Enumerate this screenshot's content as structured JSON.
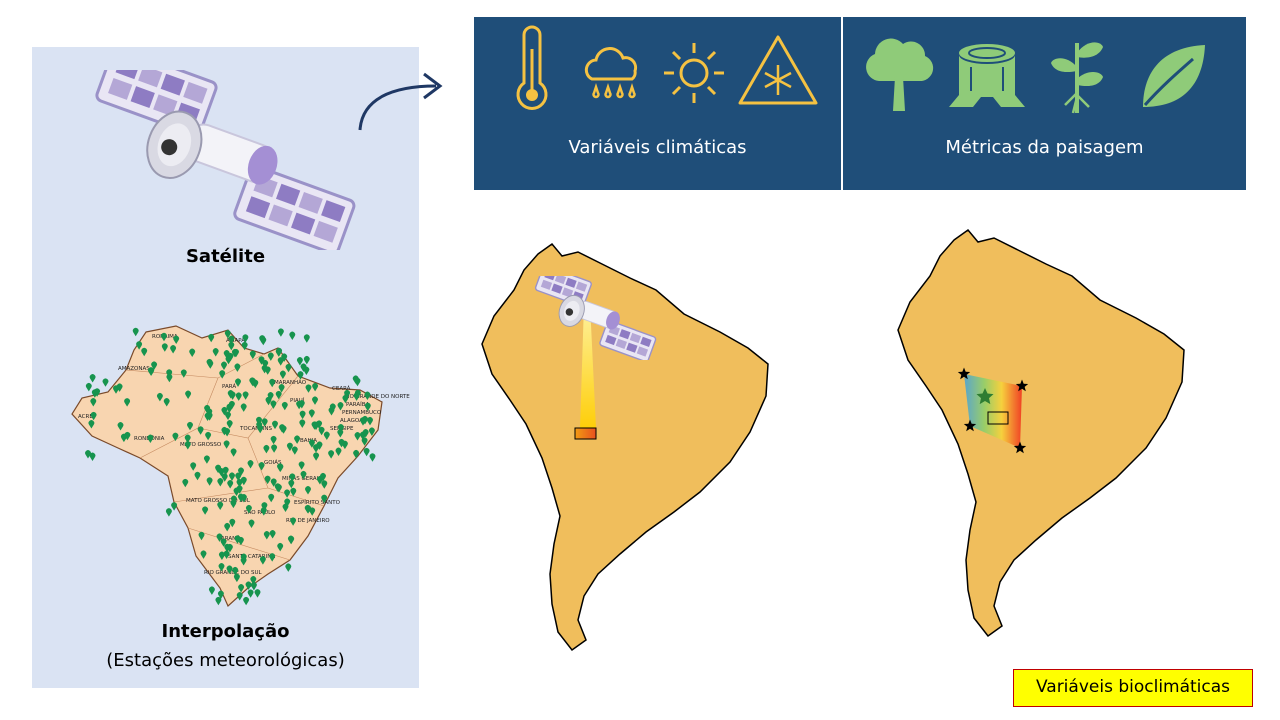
{
  "left_panel": {
    "satellite_label": "Satélite",
    "interpolation_label": "Interpolação",
    "interpolation_sub": "(Estações meteorológicas)",
    "map_labels": [
      "RORAIMA",
      "AMAPÁ",
      "AMAZONAS",
      "PARÁ",
      "MARANHÃO",
      "CEARÁ",
      "RIO GRANDE DO NORTE",
      "PARAÍBA",
      "PERNAMBUCO",
      "ALAGOAS",
      "SERGIPE",
      "PIAUÍ",
      "ACRE",
      "RONDÔNIA",
      "MATO GROSSO",
      "TOCANTINS",
      "BAHIA",
      "GOIÁS",
      "MINAS GERAIS",
      "ESPÍRITO SANTO",
      "MATO GROSSO DO SUL",
      "SÃO PAULO",
      "RIO DE JANEIRO",
      "PARANÁ",
      "SANTA CATARINA",
      "RIO GRANDE DO SUL"
    ]
  },
  "climate_box": {
    "label": "Variáveis climáticas",
    "icons": [
      "thermometer-icon",
      "rain-cloud-icon",
      "sun-icon",
      "snow-warning-icon"
    ]
  },
  "landscape_box": {
    "label": "Métricas da paisagem",
    "icons": [
      "tree-icon",
      "stump-icon",
      "sprout-icon",
      "leaf-icon"
    ]
  },
  "bioclimatic_label": "Variáveis bioclimáticas",
  "colors": {
    "panel_bg": "#dae3f3",
    "box_bg": "#1f4e79",
    "climate_icon": "#f5c242",
    "landscape_icon": "#8fcb79",
    "continent": "#f0be5c",
    "station": "#17944e"
  }
}
